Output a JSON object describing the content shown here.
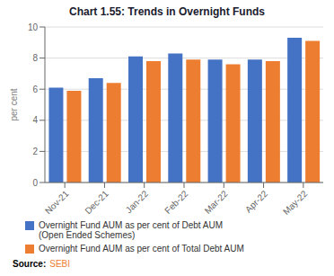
{
  "chart_data": {
    "type": "bar",
    "title": "Chart 1.55: Trends in Overnight Funds",
    "categories": [
      "Nov-21",
      "Dec-21",
      "Jan-22",
      "Feb-22",
      "Mar-22",
      "Apr-22",
      "May-22"
    ],
    "series": [
      {
        "name": "Overnight Fund AUM as per cent of Debt AUM\n(Open Ended Schemes)",
        "color": "#4472C4",
        "values": [
          6.1,
          6.7,
          8.1,
          8.3,
          7.9,
          7.9,
          9.3
        ]
      },
      {
        "name": "Overnight Fund AUM as per cent of Total Debt AUM",
        "color": "#ED7D31",
        "values": [
          5.9,
          6.4,
          7.8,
          7.9,
          7.6,
          7.8,
          9.1
        ]
      }
    ],
    "ylabel": "per cent",
    "ylim": [
      0,
      10
    ],
    "yticks": [
      0,
      2,
      4,
      6,
      8,
      10
    ],
    "grid": true,
    "legend": "bottom",
    "annotations": [
      "Source:",
      "SEBI"
    ]
  }
}
